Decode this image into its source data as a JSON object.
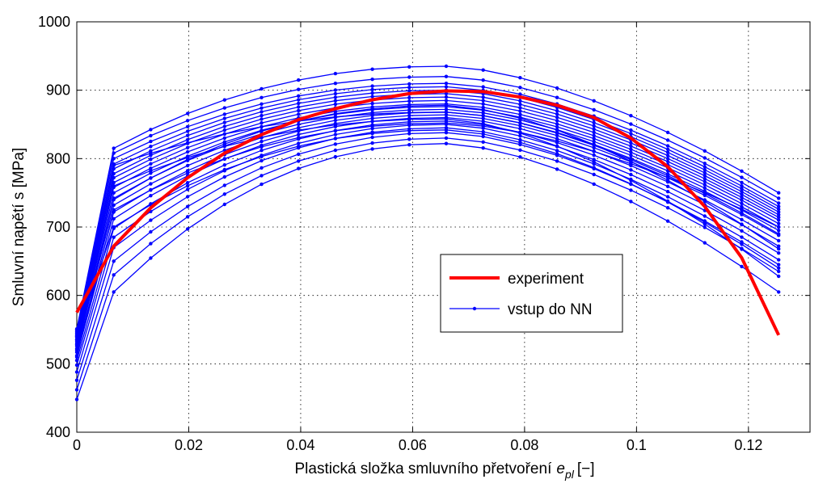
{
  "chart_data": {
    "type": "line",
    "title": "",
    "xlabel": "Plastická složka smluvního přetvoření",
    "xlabel_symbol": "e",
    "xlabel_subscript": "pl",
    "xlabel_unit": "[−]",
    "ylabel": "Smluvní napětí s [MPa]",
    "xlim": [
      0,
      0.131
    ],
    "ylim": [
      400,
      1000
    ],
    "xticks": [
      0,
      0.02,
      0.04,
      0.06,
      0.08,
      0.1,
      0.12
    ],
    "xtick_labels": [
      "0",
      "0.02",
      "0.04",
      "0.06",
      "0.08",
      "0.1",
      "0.12"
    ],
    "yticks": [
      400,
      500,
      600,
      700,
      800,
      900,
      1000
    ],
    "ytick_labels": [
      "400",
      "500",
      "600",
      "700",
      "800",
      "900",
      "1000"
    ],
    "grid": true,
    "legend_position": "center-right",
    "legend": [
      {
        "label": "experiment",
        "color": "#ff0000",
        "style": "thick-line"
      },
      {
        "label": "vstup do NN",
        "color": "#0000ff",
        "style": "line-with-dots"
      }
    ],
    "x": [
      0,
      0.0066,
      0.0132,
      0.0198,
      0.0264,
      0.033,
      0.0396,
      0.0462,
      0.0528,
      0.0594,
      0.066,
      0.0726,
      0.0792,
      0.0858,
      0.0924,
      0.099,
      0.1056,
      0.1122,
      0.1188,
      0.1254
    ],
    "experiment": {
      "name": "experiment",
      "color": "#ff0000",
      "x": [
        0,
        0.0066,
        0.0132,
        0.0198,
        0.0264,
        0.033,
        0.0396,
        0.0462,
        0.0528,
        0.0594,
        0.066,
        0.0726,
        0.0792,
        0.0858,
        0.0924,
        0.099,
        0.1056,
        0.1122,
        0.1188,
        0.1254
      ],
      "values": [
        575,
        672,
        728,
        772,
        808,
        835,
        857,
        873,
        886,
        895,
        899,
        898,
        890,
        878,
        860,
        830,
        788,
        730,
        655,
        542
      ]
    },
    "input_series_style": {
      "name": "vstup do NN",
      "color": "#0000ff"
    },
    "input_series_params": [
      {
        "v0": 448,
        "v1": 605,
        "peak": 822,
        "end": 605
      },
      {
        "v0": 462,
        "v1": 630,
        "peak": 830,
        "end": 635
      },
      {
        "v0": 476,
        "v1": 650,
        "peak": 838,
        "end": 645
      },
      {
        "v0": 488,
        "v1": 670,
        "peak": 845,
        "end": 652
      },
      {
        "v0": 498,
        "v1": 685,
        "peak": 850,
        "end": 662
      },
      {
        "v0": 505,
        "v1": 698,
        "peak": 855,
        "end": 672
      },
      {
        "v0": 512,
        "v1": 712,
        "peak": 860,
        "end": 680
      },
      {
        "v0": 517,
        "v1": 722,
        "peak": 864,
        "end": 688
      },
      {
        "v0": 522,
        "v1": 732,
        "peak": 868,
        "end": 695
      },
      {
        "v0": 526,
        "v1": 742,
        "peak": 872,
        "end": 700
      },
      {
        "v0": 530,
        "v1": 750,
        "peak": 876,
        "end": 705
      },
      {
        "v0": 533,
        "v1": 758,
        "peak": 880,
        "end": 710
      },
      {
        "v0": 536,
        "v1": 765,
        "peak": 885,
        "end": 714
      },
      {
        "v0": 539,
        "v1": 772,
        "peak": 890,
        "end": 718
      },
      {
        "v0": 541,
        "v1": 778,
        "peak": 895,
        "end": 722
      },
      {
        "v0": 543,
        "v1": 785,
        "peak": 900,
        "end": 726
      },
      {
        "v0": 545,
        "v1": 792,
        "peak": 905,
        "end": 730
      },
      {
        "v0": 547,
        "v1": 800,
        "peak": 910,
        "end": 735
      },
      {
        "v0": 549,
        "v1": 808,
        "peak": 920,
        "end": 742
      },
      {
        "v0": 551,
        "v1": 815,
        "peak": 935,
        "end": 750
      },
      {
        "v0": 540,
        "v1": 700,
        "peak": 842,
        "end": 640
      },
      {
        "v0": 528,
        "v1": 760,
        "peak": 858,
        "end": 628
      },
      {
        "v0": 535,
        "v1": 790,
        "peak": 868,
        "end": 690
      },
      {
        "v0": 520,
        "v1": 740,
        "peak": 878,
        "end": 668
      },
      {
        "v0": 510,
        "v1": 725,
        "peak": 852,
        "end": 700
      }
    ]
  }
}
